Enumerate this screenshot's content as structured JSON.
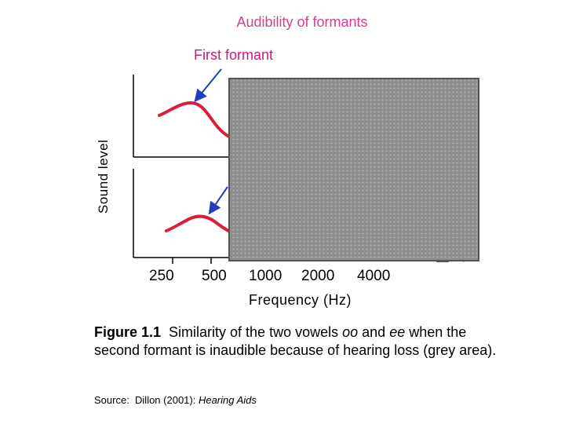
{
  "title": "Audibility of formants",
  "first_formant_label": "First formant",
  "y_axis_label": "Sound level",
  "x_axis_label": "Frequency (Hz)",
  "x_ticks": [
    "250",
    "500",
    "1000",
    "2000",
    "4000"
  ],
  "caption": {
    "bold": "Figure 1.1",
    "part1": "  Similarity of the two vowels ",
    "vowel1": "oo",
    "part2": " and ",
    "vowel2": "ee",
    "part3": " when the second formant is inaudible because of hearing loss (grey area)."
  },
  "source": {
    "prefix": "Source:  Dillon (2001): ",
    "title": "Hearing Aids"
  },
  "colors": {
    "title": "#d63c8f",
    "label": "#c41c7a",
    "curve": "#d8203a",
    "arrow": "#1f3fbf",
    "grey_area": "#909090",
    "grey_border": "#555555",
    "axis": "#000000"
  }
}
